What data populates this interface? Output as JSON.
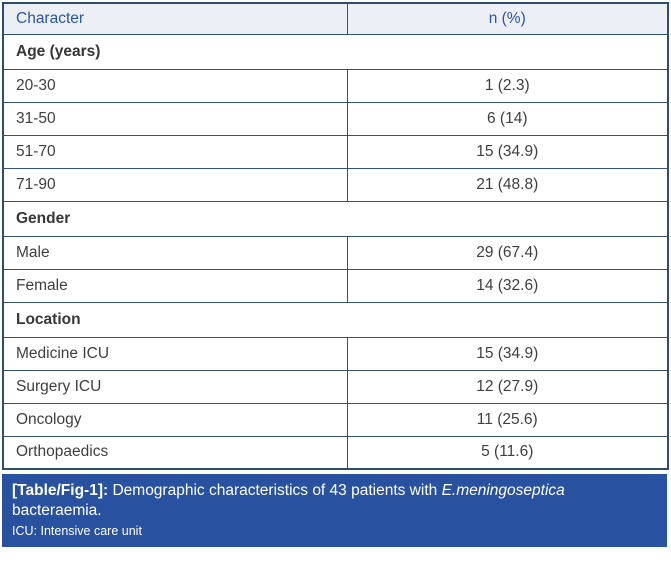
{
  "table": {
    "header": {
      "col1": "Character",
      "col2": "n (%)"
    },
    "sections": [
      {
        "label": "Age (years)",
        "rows": [
          [
            "20-30",
            "1 (2.3)"
          ],
          [
            "31-50",
            "6 (14)"
          ],
          [
            "51-70",
            "15 (34.9)"
          ],
          [
            "71-90",
            "21 (48.8)"
          ]
        ]
      },
      {
        "label": "Gender",
        "rows": [
          [
            "Male",
            "29 (67.4)"
          ],
          [
            "Female",
            "14 (32.6)"
          ]
        ]
      },
      {
        "label": "Location",
        "rows": [
          [
            "Medicine ICU",
            "15 (34.9)"
          ],
          [
            "Surgery ICU",
            "12 (27.9)"
          ],
          [
            "Oncology",
            "11 (25.6)"
          ],
          [
            "Orthopaedics",
            "5 (11.6)"
          ]
        ]
      }
    ]
  },
  "caption": {
    "tag": "[Table/Fig-1]:",
    "text_before_italic": " Demographic characteristics of 43 patients with ",
    "italic_text": "E.meningoseptica",
    "text_after_italic": " bacteraemia.",
    "footnote": "ICU: Intensive care unit"
  },
  "colors": {
    "caption_background": "#2851a0",
    "header_background": "#edeff6",
    "header_text": "#2b55a6",
    "grid_line": "#33517c",
    "body_text": "#3f3f3f"
  },
  "chart_data": {
    "type": "table",
    "title": "[Table/Fig-1]: Demographic characteristics of 43 patients with E.meningoseptica bacteraemia.",
    "columns": [
      "Character",
      "n (%)"
    ],
    "groups": [
      {
        "group": "Age (years)",
        "rows": [
          [
            "20-30",
            "1 (2.3)"
          ],
          [
            "31-50",
            "6 (14)"
          ],
          [
            "51-70",
            "15 (34.9)"
          ],
          [
            "71-90",
            "21 (48.8)"
          ]
        ]
      },
      {
        "group": "Gender",
        "rows": [
          [
            "Male",
            "29 (67.4)"
          ],
          [
            "Female",
            "14 (32.6)"
          ]
        ]
      },
      {
        "group": "Location",
        "rows": [
          [
            "Medicine ICU",
            "15 (34.9)"
          ],
          [
            "Surgery ICU",
            "12 (27.9)"
          ],
          [
            "Oncology",
            "11 (25.6)"
          ],
          [
            "Orthopaedics",
            "5 (11.6)"
          ]
        ]
      }
    ],
    "footnote": "ICU: Intensive care unit"
  }
}
